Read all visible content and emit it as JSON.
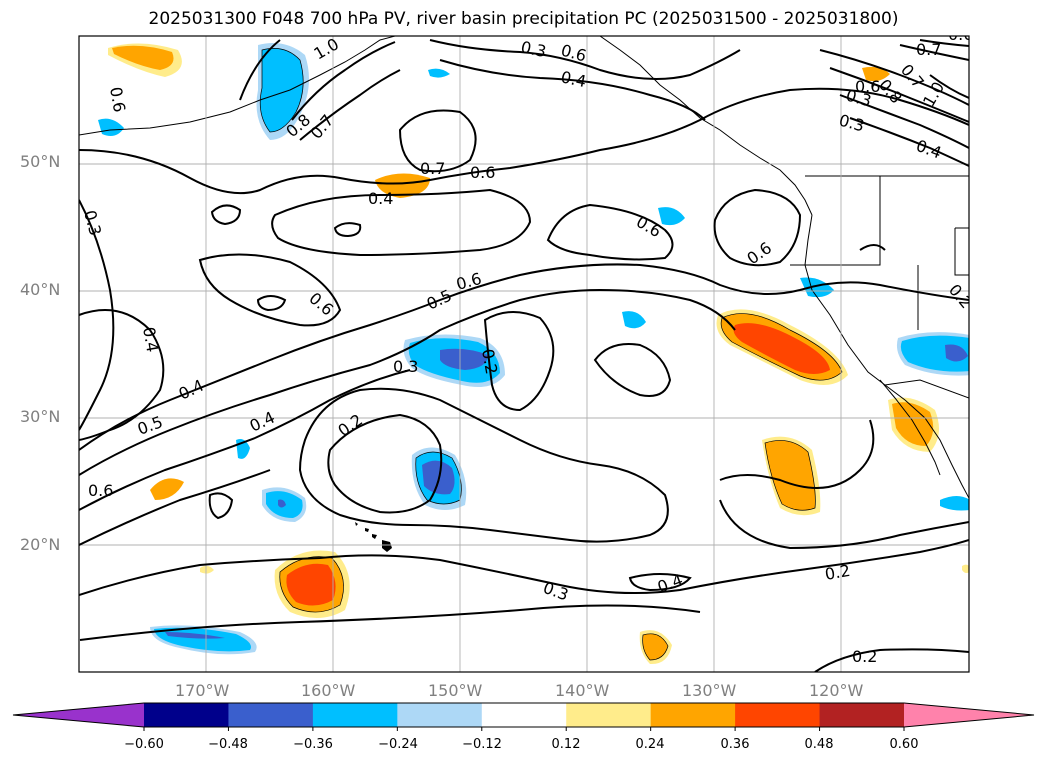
{
  "title": "2025031300 F048 700 hPa PV, river basin precipitation PC (2025031500 - 2025031800)",
  "map": {
    "lat_labels": [
      "50°N",
      "40°N",
      "30°N",
      "20°N"
    ],
    "lon_labels": [
      "170°W",
      "160°W",
      "150°W",
      "140°W",
      "130°W",
      "120°W"
    ],
    "contour_labels": [
      "1.0",
      "0.8",
      "0.7",
      "0.6",
      "0.3",
      "0.4",
      "0.7",
      "0.6",
      "0.4",
      "0.6",
      "0.6",
      "0.6",
      "0.3",
      "0.6",
      "0.5",
      "0.6",
      "0.4",
      "0.3",
      "0.2",
      "0.4",
      "0.5",
      "0.4",
      "0.2",
      "0.6",
      "0.3",
      "0.4",
      "0.2",
      "0.2",
      "0.7",
      "0.6",
      "0.7",
      "0.8",
      "1.0",
      "0.3",
      "0.4",
      "0.2",
      "0.3",
      "0.6"
    ],
    "grid": true
  },
  "colorbar": {
    "colors": [
      "#9932cc",
      "#00008b",
      "#3a5fcd",
      "#00bfff",
      "#add8f6",
      "#ffffff",
      "#ffec8b",
      "#ffa500",
      "#ff4500",
      "#b22222",
      "#ff82ab"
    ],
    "tick_labels": [
      "−0.60",
      "−0.48",
      "−0.36",
      "−0.24",
      "−0.12",
      "0.12",
      "0.24",
      "0.36",
      "0.48",
      "0.60"
    ],
    "extend": "both"
  }
}
